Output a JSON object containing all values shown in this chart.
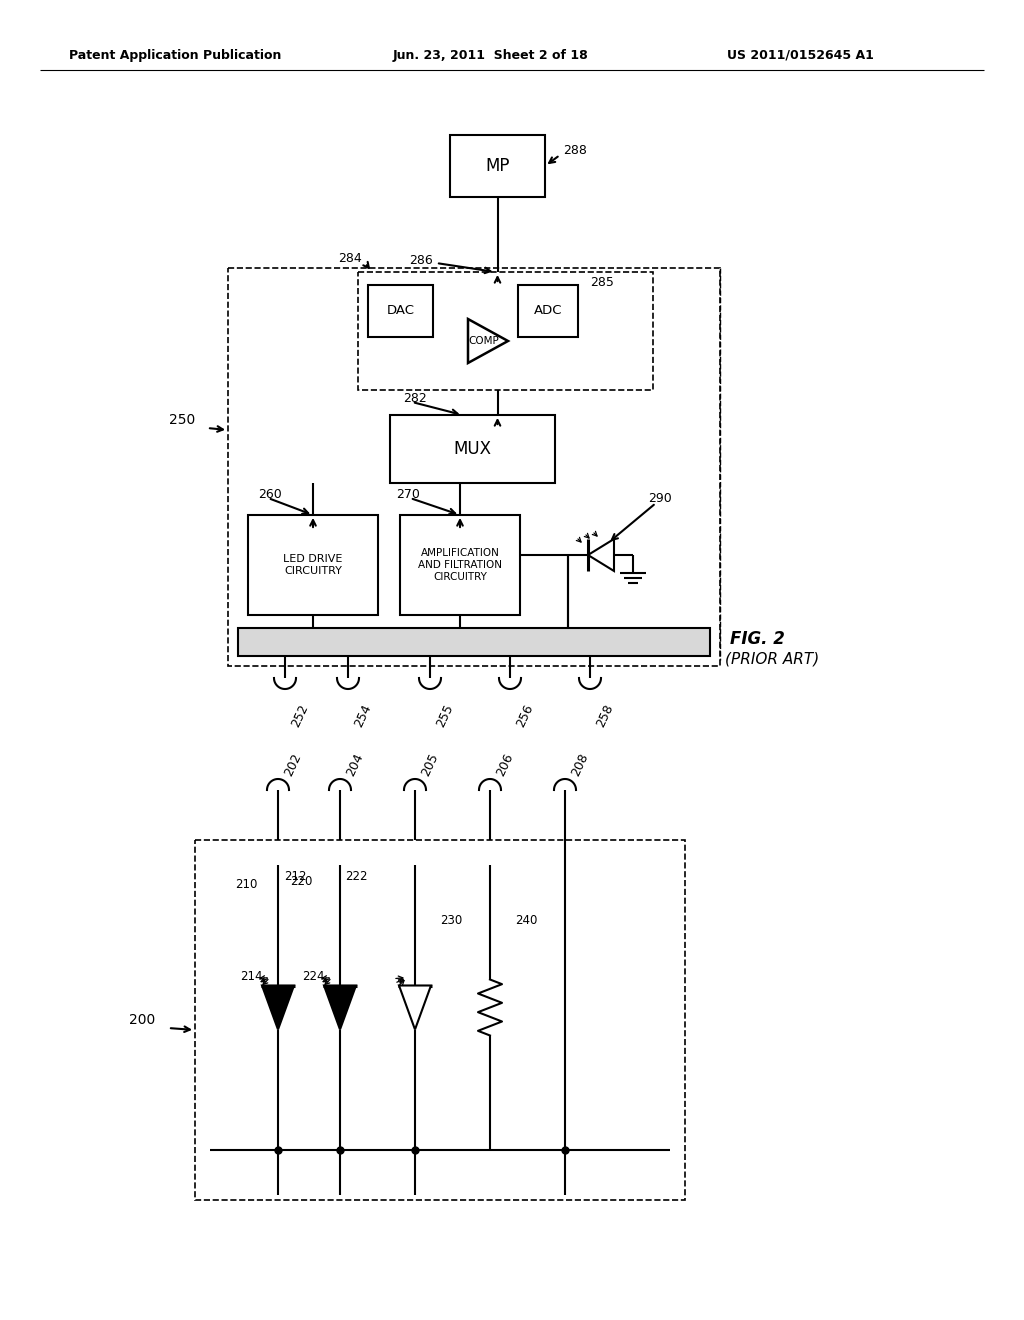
{
  "bg_color": "#ffffff",
  "header_left": "Patent Application Publication",
  "header_mid": "Jun. 23, 2011  Sheet 2 of 18",
  "header_right": "US 2011/0152645 A1",
  "fig2_label": "FIG. 2",
  "fig2_sub": "(PRIOR ART)",
  "label_250": "250",
  "label_260": "260",
  "label_270": "270",
  "label_282": "282",
  "label_284": "284",
  "label_285": "285",
  "label_286": "286",
  "label_288": "288",
  "label_290": "290",
  "label_252": "252",
  "label_254": "254",
  "label_255": "255",
  "label_256": "256",
  "label_258": "258",
  "box_LED": "LED DRIVE\nCIRCUITRY",
  "box_AMP": "AMPLIFICATION\nAND FILTRATION\nCIRCUITRY",
  "box_MUX": "MUX",
  "box_MP": "MP",
  "box_DAC": "DAC",
  "box_ADC": "ADC",
  "box_COMP": "COMP",
  "label_200": "200",
  "label_202": "202",
  "label_204": "204",
  "label_205": "205",
  "label_206": "206",
  "label_208": "208",
  "label_210": "210",
  "label_212": "212",
  "label_214": "214",
  "label_220": "220",
  "label_222": "222",
  "label_224": "224",
  "label_230": "230",
  "label_240": "240"
}
